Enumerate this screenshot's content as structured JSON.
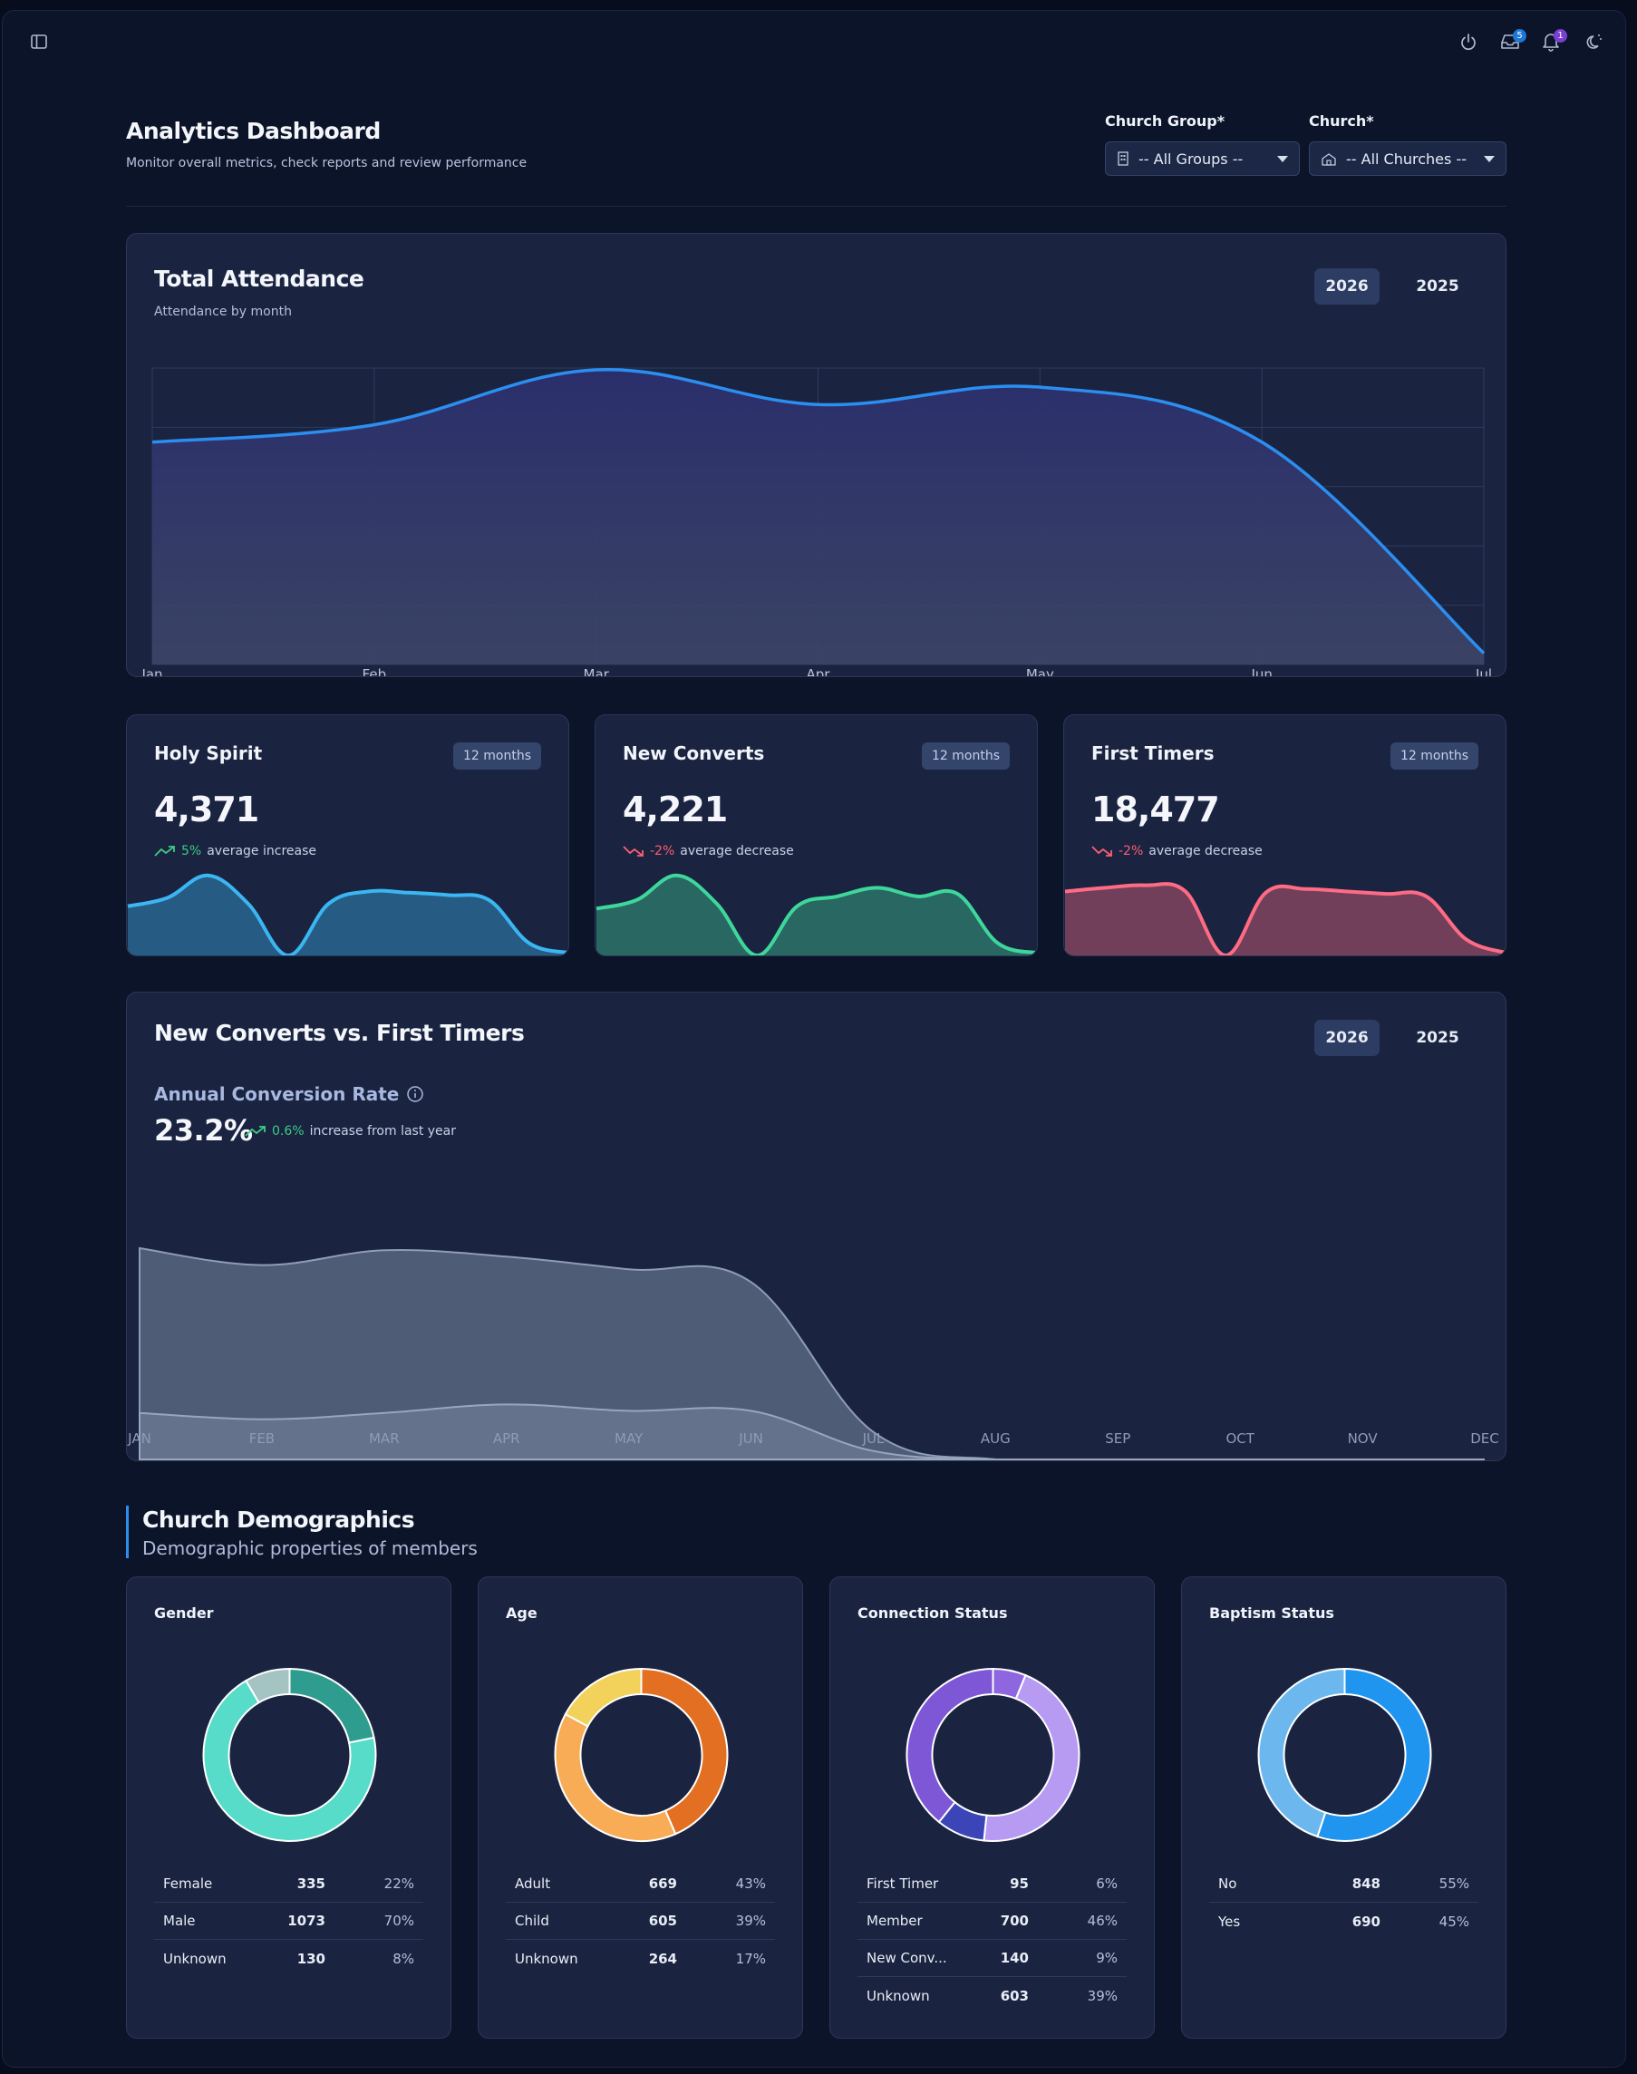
{
  "topbar": {
    "icons": [
      "sidebar-toggle-icon",
      "power-icon",
      "inbox-icon",
      "bell-icon",
      "theme-toggle-icon"
    ],
    "inbox_badge": "5",
    "bell_badge": "1"
  },
  "header": {
    "title": "Analytics Dashboard",
    "subtitle": "Monitor overall metrics, check reports and review performance",
    "church_group_label": "Church Group*",
    "church_group_value": "-- All Groups --",
    "church_label": "Church*",
    "church_value": "-- All Churches --"
  },
  "attendance": {
    "title": "Total Attendance",
    "subtitle": "Attendance by month",
    "years": [
      "2026",
      "2025"
    ],
    "active_year": "2026"
  },
  "stats": [
    {
      "title": "Holy Spirit",
      "period": "12 months",
      "value": "4,371",
      "delta": "5%",
      "delta_text": "average increase",
      "direction": "up",
      "color": "#3bb6f2"
    },
    {
      "title": "New Converts",
      "period": "12 months",
      "value": "4,221",
      "delta": "-2%",
      "delta_text": "average decrease",
      "direction": "down",
      "color": "#3fd69b"
    },
    {
      "title": "First Timers",
      "period": "12 months",
      "value": "18,477",
      "delta": "-2%",
      "delta_text": "average decrease",
      "direction": "down",
      "color": "#ff6b85"
    }
  ],
  "conversion": {
    "title": "New Converts vs. First Timers",
    "years": [
      "2026",
      "2025"
    ],
    "active_year": "2026",
    "rate_label": "Annual Conversion Rate",
    "rate_value": "23.2%",
    "rate_delta": "0.6%",
    "rate_delta_text": "increase from last year"
  },
  "demographics": {
    "title": "Church Demographics",
    "subtitle": "Demographic properties of members",
    "cards": [
      {
        "title": "Gender",
        "rows": [
          {
            "label": "Female",
            "count": "335",
            "pct": "22%",
            "color": "#2e9c8e"
          },
          {
            "label": "Male",
            "count": "1073",
            "pct": "70%",
            "color": "#56dcc8"
          },
          {
            "label": "Unknown",
            "count": "130",
            "pct": "8%",
            "color": "#a3c4c3"
          }
        ]
      },
      {
        "title": "Age",
        "rows": [
          {
            "label": "Adult",
            "count": "669",
            "pct": "43%",
            "color": "#e36f22"
          },
          {
            "label": "Child",
            "count": "605",
            "pct": "39%",
            "color": "#f7ac55"
          },
          {
            "label": "Unknown",
            "count": "264",
            "pct": "17%",
            "color": "#f2d25a"
          }
        ]
      },
      {
        "title": "Connection Status",
        "rows": [
          {
            "label": "First Timer",
            "count": "95",
            "pct": "6%",
            "color": "#8e67e0"
          },
          {
            "label": "Member",
            "count": "700",
            "pct": "46%",
            "color": "#b79af2"
          },
          {
            "label": "New Conv...",
            "count": "140",
            "pct": "9%",
            "color": "#3c45b8"
          },
          {
            "label": "Unknown",
            "count": "603",
            "pct": "39%",
            "color": "#7e57d7"
          }
        ]
      },
      {
        "title": "Baptism Status",
        "rows": [
          {
            "label": "No",
            "count": "848",
            "pct": "55%",
            "color": "#1f95f0"
          },
          {
            "label": "Yes",
            "count": "690",
            "pct": "45%",
            "color": "#6cb8ee"
          }
        ]
      }
    ]
  },
  "chart_data": [
    {
      "type": "area",
      "title": "Total Attendance",
      "categories": [
        "Jan",
        "Feb",
        "Mar",
        "Apr",
        "May",
        "Jun",
        "Jul"
      ],
      "series": [
        {
          "values": [
            75,
            81,
            100,
            88,
            94,
            75,
            2
          ]
        }
      ],
      "ylim": [
        0,
        100
      ],
      "grid": true,
      "color": "#2b8ef0"
    },
    {
      "type": "area",
      "title": "New Converts vs. First Timers",
      "categories": [
        "JAN",
        "FEB",
        "MAR",
        "APR",
        "MAY",
        "JUN",
        "JUL",
        "AUG",
        "SEP",
        "OCT",
        "NOV",
        "DEC"
      ],
      "series": [
        {
          "values": [
            100,
            92,
            99,
            96,
            90,
            84,
            13,
            0,
            0,
            0,
            0,
            0
          ]
        },
        {
          "values": [
            22,
            19,
            22,
            26,
            23,
            23,
            4,
            0,
            0,
            0,
            0,
            0
          ]
        }
      ],
      "ylim": [
        0,
        100
      ]
    },
    {
      "type": "area",
      "title": "Holy Spirit",
      "series": [
        {
          "values": [
            40,
            47,
            65,
            42,
            0,
            42,
            52,
            51,
            49,
            45,
            10,
            2
          ]
        }
      ]
    },
    {
      "type": "area",
      "title": "New Converts",
      "series": [
        {
          "values": [
            38,
            45,
            65,
            42,
            0,
            40,
            48,
            55,
            48,
            50,
            10,
            2
          ]
        }
      ]
    },
    {
      "type": "area",
      "title": "First Timers",
      "series": [
        {
          "values": [
            52,
            55,
            57,
            52,
            0,
            51,
            54,
            52,
            50,
            48,
            13,
            2
          ]
        }
      ]
    }
  ]
}
